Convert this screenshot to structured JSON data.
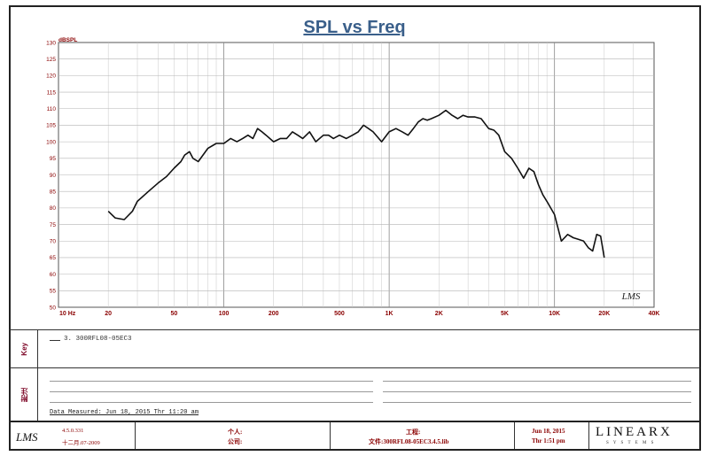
{
  "chart_data": {
    "type": "line",
    "title": "SPL vs Freq",
    "ylabel": "dBSPL",
    "xscale": "log",
    "xlim": [
      10,
      40000
    ],
    "ylim": [
      50,
      130
    ],
    "grid": true,
    "x_tick_labels": [
      {
        "v": 10,
        "label": "10 Hz"
      },
      {
        "v": 20,
        "label": "20"
      },
      {
        "v": 50,
        "label": "50"
      },
      {
        "v": 100,
        "label": "100"
      },
      {
        "v": 200,
        "label": "200"
      },
      {
        "v": 500,
        "label": "500"
      },
      {
        "v": 1000,
        "label": "1K"
      },
      {
        "v": 2000,
        "label": "2K"
      },
      {
        "v": 5000,
        "label": "5K"
      },
      {
        "v": 10000,
        "label": "10K"
      },
      {
        "v": 20000,
        "label": "20K"
      },
      {
        "v": 40000,
        "label": "40K"
      }
    ],
    "y_ticks": [
      50,
      55,
      60,
      65,
      70,
      75,
      80,
      85,
      90,
      95,
      100,
      105,
      110,
      115,
      120,
      125,
      130
    ],
    "series": [
      {
        "name": "3. 300RFL08-05EC3",
        "color": "#111111",
        "x": [
          20,
          22,
          25,
          28,
          30,
          35,
          40,
          45,
          50,
          55,
          58,
          62,
          65,
          70,
          80,
          90,
          100,
          110,
          120,
          130,
          140,
          150,
          160,
          170,
          180,
          200,
          220,
          240,
          260,
          280,
          300,
          330,
          360,
          400,
          430,
          460,
          500,
          550,
          600,
          650,
          700,
          750,
          800,
          900,
          1000,
          1100,
          1200,
          1300,
          1400,
          1500,
          1600,
          1700,
          1800,
          2000,
          2200,
          2400,
          2600,
          2800,
          3000,
          3300,
          3600,
          4000,
          4300,
          4600,
          5000,
          5500,
          6000,
          6500,
          7000,
          7500,
          8000,
          8500,
          9000,
          10000,
          11000,
          12000,
          13000,
          14000,
          15000,
          16000,
          17000,
          18000,
          19000,
          20000
        ],
        "y": [
          79,
          77,
          76.5,
          79,
          82,
          85,
          87.5,
          89.5,
          92,
          94,
          96,
          97,
          95,
          94,
          98,
          99.5,
          99.5,
          101,
          100,
          101,
          102,
          101,
          104,
          103,
          102,
          100,
          101,
          101,
          103,
          102,
          101,
          103,
          100,
          102,
          102,
          101,
          102,
          101,
          102,
          103,
          105,
          104,
          103,
          100,
          103,
          104,
          103,
          102,
          104,
          106,
          107,
          106.5,
          107,
          108,
          109.5,
          108,
          107,
          108,
          107.5,
          107.5,
          107,
          104,
          103.5,
          102,
          97,
          95,
          92,
          89,
          92,
          91,
          87,
          84,
          82,
          78,
          70,
          72,
          71,
          70.5,
          70,
          68,
          67,
          72,
          71.5,
          65
        ]
      }
    ]
  },
  "legend": {
    "side_label": "Key"
  },
  "notes": {
    "side_label": "附注",
    "measured": "Data Measured: Jun 18, 2015  Thr  11:20 am"
  },
  "footer": {
    "logo": "LMS",
    "version": "4.5.0.331",
    "date_cn": "十二月.07-2009",
    "person_label": "个人:",
    "company_label": "公司:",
    "project_label": "工程:",
    "file_label": "文件:300RFL08-05EC3.4.5.lib",
    "date": "Jun 18, 2015",
    "time": "Thr  1:51 pm",
    "brand": "LINEARX",
    "brand_sub": "S Y S T E M S"
  },
  "watermark": "LMS"
}
